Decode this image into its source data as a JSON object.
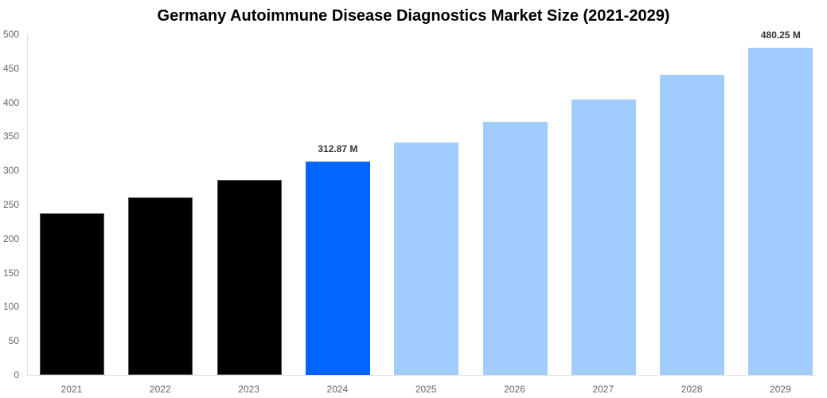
{
  "chart_data": {
    "type": "bar",
    "title": "Germany Autoimmune Disease Diagnostics Market Size (2021-2029)",
    "xlabel": "",
    "ylabel": "",
    "ylim": [
      0,
      500
    ],
    "yticks": [
      0,
      50,
      100,
      150,
      200,
      250,
      300,
      350,
      400,
      450,
      500
    ],
    "grid": false,
    "categories": [
      "2021",
      "2022",
      "2023",
      "2024",
      "2025",
      "2026",
      "2027",
      "2028",
      "2029"
    ],
    "values": [
      237,
      260.5,
      286,
      312.87,
      341,
      371,
      404,
      440,
      480.25
    ],
    "colors": [
      "#000000",
      "#000000",
      "#000000",
      "#0066ff",
      "#a0cdfc",
      "#a0cdfc",
      "#a0cdfc",
      "#a0cdfc",
      "#a0cdfc"
    ],
    "annotations": [
      {
        "category": "2024",
        "text": "312.87 M"
      },
      {
        "category": "2029",
        "text": "480.25 M"
      }
    ]
  }
}
